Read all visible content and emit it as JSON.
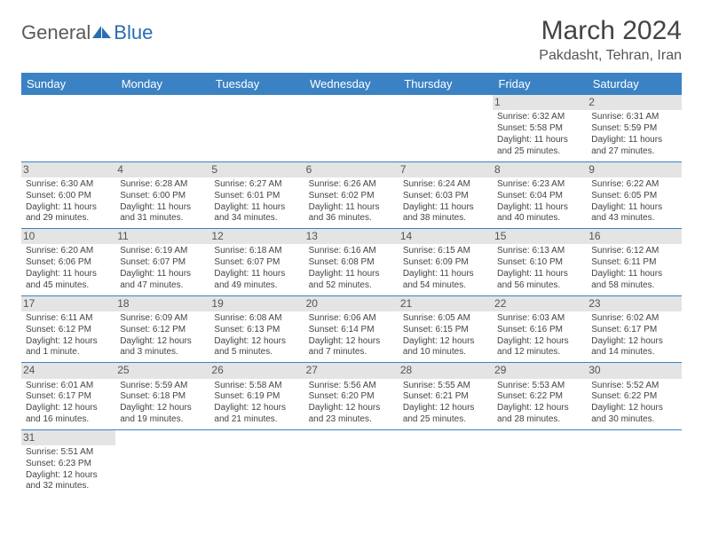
{
  "logo": {
    "part1": "General",
    "part2": "Blue"
  },
  "title": "March 2024",
  "location": "Pakdasht, Tehran, Iran",
  "colors": {
    "header_bg": "#3b82c4",
    "header_text": "#ffffff",
    "daynum_bg": "#e4e4e4",
    "divider": "#3b82c4",
    "body_text": "#444444",
    "logo_gray": "#5a5a5a",
    "logo_blue": "#2a6db0"
  },
  "day_headers": [
    "Sunday",
    "Monday",
    "Tuesday",
    "Wednesday",
    "Thursday",
    "Friday",
    "Saturday"
  ],
  "weeks": [
    [
      null,
      null,
      null,
      null,
      null,
      {
        "n": "1",
        "sr": "Sunrise: 6:32 AM",
        "ss": "Sunset: 5:58 PM",
        "d1": "Daylight: 11 hours",
        "d2": "and 25 minutes."
      },
      {
        "n": "2",
        "sr": "Sunrise: 6:31 AM",
        "ss": "Sunset: 5:59 PM",
        "d1": "Daylight: 11 hours",
        "d2": "and 27 minutes."
      }
    ],
    [
      {
        "n": "3",
        "sr": "Sunrise: 6:30 AM",
        "ss": "Sunset: 6:00 PM",
        "d1": "Daylight: 11 hours",
        "d2": "and 29 minutes."
      },
      {
        "n": "4",
        "sr": "Sunrise: 6:28 AM",
        "ss": "Sunset: 6:00 PM",
        "d1": "Daylight: 11 hours",
        "d2": "and 31 minutes."
      },
      {
        "n": "5",
        "sr": "Sunrise: 6:27 AM",
        "ss": "Sunset: 6:01 PM",
        "d1": "Daylight: 11 hours",
        "d2": "and 34 minutes."
      },
      {
        "n": "6",
        "sr": "Sunrise: 6:26 AM",
        "ss": "Sunset: 6:02 PM",
        "d1": "Daylight: 11 hours",
        "d2": "and 36 minutes."
      },
      {
        "n": "7",
        "sr": "Sunrise: 6:24 AM",
        "ss": "Sunset: 6:03 PM",
        "d1": "Daylight: 11 hours",
        "d2": "and 38 minutes."
      },
      {
        "n": "8",
        "sr": "Sunrise: 6:23 AM",
        "ss": "Sunset: 6:04 PM",
        "d1": "Daylight: 11 hours",
        "d2": "and 40 minutes."
      },
      {
        "n": "9",
        "sr": "Sunrise: 6:22 AM",
        "ss": "Sunset: 6:05 PM",
        "d1": "Daylight: 11 hours",
        "d2": "and 43 minutes."
      }
    ],
    [
      {
        "n": "10",
        "sr": "Sunrise: 6:20 AM",
        "ss": "Sunset: 6:06 PM",
        "d1": "Daylight: 11 hours",
        "d2": "and 45 minutes."
      },
      {
        "n": "11",
        "sr": "Sunrise: 6:19 AM",
        "ss": "Sunset: 6:07 PM",
        "d1": "Daylight: 11 hours",
        "d2": "and 47 minutes."
      },
      {
        "n": "12",
        "sr": "Sunrise: 6:18 AM",
        "ss": "Sunset: 6:07 PM",
        "d1": "Daylight: 11 hours",
        "d2": "and 49 minutes."
      },
      {
        "n": "13",
        "sr": "Sunrise: 6:16 AM",
        "ss": "Sunset: 6:08 PM",
        "d1": "Daylight: 11 hours",
        "d2": "and 52 minutes."
      },
      {
        "n": "14",
        "sr": "Sunrise: 6:15 AM",
        "ss": "Sunset: 6:09 PM",
        "d1": "Daylight: 11 hours",
        "d2": "and 54 minutes."
      },
      {
        "n": "15",
        "sr": "Sunrise: 6:13 AM",
        "ss": "Sunset: 6:10 PM",
        "d1": "Daylight: 11 hours",
        "d2": "and 56 minutes."
      },
      {
        "n": "16",
        "sr": "Sunrise: 6:12 AM",
        "ss": "Sunset: 6:11 PM",
        "d1": "Daylight: 11 hours",
        "d2": "and 58 minutes."
      }
    ],
    [
      {
        "n": "17",
        "sr": "Sunrise: 6:11 AM",
        "ss": "Sunset: 6:12 PM",
        "d1": "Daylight: 12 hours",
        "d2": "and 1 minute."
      },
      {
        "n": "18",
        "sr": "Sunrise: 6:09 AM",
        "ss": "Sunset: 6:12 PM",
        "d1": "Daylight: 12 hours",
        "d2": "and 3 minutes."
      },
      {
        "n": "19",
        "sr": "Sunrise: 6:08 AM",
        "ss": "Sunset: 6:13 PM",
        "d1": "Daylight: 12 hours",
        "d2": "and 5 minutes."
      },
      {
        "n": "20",
        "sr": "Sunrise: 6:06 AM",
        "ss": "Sunset: 6:14 PM",
        "d1": "Daylight: 12 hours",
        "d2": "and 7 minutes."
      },
      {
        "n": "21",
        "sr": "Sunrise: 6:05 AM",
        "ss": "Sunset: 6:15 PM",
        "d1": "Daylight: 12 hours",
        "d2": "and 10 minutes."
      },
      {
        "n": "22",
        "sr": "Sunrise: 6:03 AM",
        "ss": "Sunset: 6:16 PM",
        "d1": "Daylight: 12 hours",
        "d2": "and 12 minutes."
      },
      {
        "n": "23",
        "sr": "Sunrise: 6:02 AM",
        "ss": "Sunset: 6:17 PM",
        "d1": "Daylight: 12 hours",
        "d2": "and 14 minutes."
      }
    ],
    [
      {
        "n": "24",
        "sr": "Sunrise: 6:01 AM",
        "ss": "Sunset: 6:17 PM",
        "d1": "Daylight: 12 hours",
        "d2": "and 16 minutes."
      },
      {
        "n": "25",
        "sr": "Sunrise: 5:59 AM",
        "ss": "Sunset: 6:18 PM",
        "d1": "Daylight: 12 hours",
        "d2": "and 19 minutes."
      },
      {
        "n": "26",
        "sr": "Sunrise: 5:58 AM",
        "ss": "Sunset: 6:19 PM",
        "d1": "Daylight: 12 hours",
        "d2": "and 21 minutes."
      },
      {
        "n": "27",
        "sr": "Sunrise: 5:56 AM",
        "ss": "Sunset: 6:20 PM",
        "d1": "Daylight: 12 hours",
        "d2": "and 23 minutes."
      },
      {
        "n": "28",
        "sr": "Sunrise: 5:55 AM",
        "ss": "Sunset: 6:21 PM",
        "d1": "Daylight: 12 hours",
        "d2": "and 25 minutes."
      },
      {
        "n": "29",
        "sr": "Sunrise: 5:53 AM",
        "ss": "Sunset: 6:22 PM",
        "d1": "Daylight: 12 hours",
        "d2": "and 28 minutes."
      },
      {
        "n": "30",
        "sr": "Sunrise: 5:52 AM",
        "ss": "Sunset: 6:22 PM",
        "d1": "Daylight: 12 hours",
        "d2": "and 30 minutes."
      }
    ],
    [
      {
        "n": "31",
        "sr": "Sunrise: 5:51 AM",
        "ss": "Sunset: 6:23 PM",
        "d1": "Daylight: 12 hours",
        "d2": "and 32 minutes."
      },
      null,
      null,
      null,
      null,
      null,
      null
    ]
  ]
}
